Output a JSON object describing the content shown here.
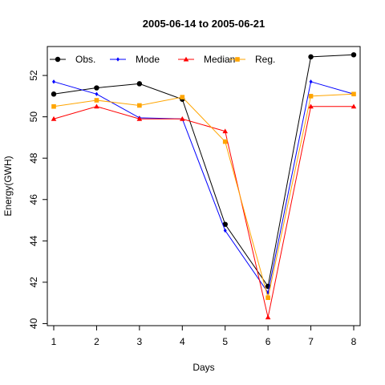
{
  "chart_data": {
    "type": "line",
    "title": "2005-06-14 to 2005-06-21",
    "xlabel": "Days",
    "ylabel": "Energy(GWH)",
    "xlim": [
      0.85,
      8.15
    ],
    "ylim": [
      39.9,
      53.4
    ],
    "x": [
      1,
      2,
      3,
      4,
      5,
      6,
      7,
      8
    ],
    "x_ticks": [
      "1",
      "2",
      "3",
      "4",
      "5",
      "6",
      "7",
      "8"
    ],
    "y_ticks": [
      40,
      42,
      44,
      46,
      48,
      50,
      52
    ],
    "grid": false,
    "legend_position": "top",
    "series": [
      {
        "name": "Obs.",
        "color": "#000000",
        "marker": "circle",
        "values": [
          51.1,
          51.4,
          51.6,
          50.85,
          44.8,
          41.8,
          52.9,
          53.0
        ]
      },
      {
        "name": "Mode",
        "color": "#0000ff",
        "marker": "diamond",
        "values": [
          51.7,
          51.1,
          49.95,
          49.9,
          44.5,
          41.5,
          51.7,
          51.1
        ]
      },
      {
        "name": "Median",
        "color": "#ff0000",
        "marker": "triangle",
        "values": [
          49.9,
          50.5,
          49.9,
          49.9,
          49.3,
          40.3,
          50.5,
          50.5
        ]
      },
      {
        "name": "Reg.",
        "color": "#ffa500",
        "marker": "square",
        "values": [
          50.5,
          50.8,
          50.55,
          50.95,
          48.8,
          41.25,
          51.0,
          51.1
        ]
      }
    ]
  }
}
